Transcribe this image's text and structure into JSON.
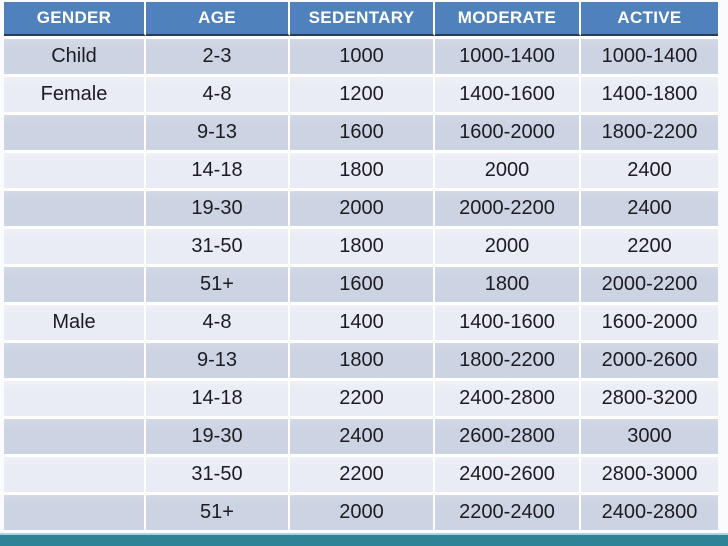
{
  "colors": {
    "header_bg": "#4f81bd",
    "header_text": "#ffffff",
    "header_border": "#2d3b55",
    "band_dark": "#ccd3e2",
    "band_light": "#e9ecf4",
    "cell_text": "#1c1c22",
    "gap": "#ffffff",
    "accent_bar": "#2e8397",
    "accent_bar_edge": "#aed2dc"
  },
  "chart_data": {
    "type": "table",
    "columns": [
      "GENDER",
      "AGE",
      "SEDENTARY",
      "MODERATE",
      "ACTIVE"
    ],
    "rows": [
      [
        "Child",
        "2-3",
        "1000",
        "1000-1400",
        "1000-1400"
      ],
      [
        "Female",
        "4-8",
        "1200",
        "1400-1600",
        "1400-1800"
      ],
      [
        "",
        "9-13",
        "1600",
        "1600-2000",
        "1800-2200"
      ],
      [
        "",
        "14-18",
        "1800",
        "2000",
        "2400"
      ],
      [
        "",
        "19-30",
        "2000",
        "2000-2200",
        "2400"
      ],
      [
        "",
        "31-50",
        "1800",
        "2000",
        "2200"
      ],
      [
        "",
        "51+",
        "1600",
        "1800",
        "2000-2200"
      ],
      [
        "Male",
        "4-8",
        "1400",
        "1400-1600",
        "1600-2000"
      ],
      [
        "",
        "9-13",
        "1800",
        "1800-2200",
        "2000-2600"
      ],
      [
        "",
        "14-18",
        "2200",
        "2400-2800",
        "2800-3200"
      ],
      [
        "",
        "19-30",
        "2400",
        "2600-2800",
        "3000"
      ],
      [
        "",
        "31-50",
        "2200",
        "2400-2600",
        "2800-3000"
      ],
      [
        "",
        "51+",
        "2000",
        "2200-2400",
        "2400-2800"
      ]
    ]
  }
}
